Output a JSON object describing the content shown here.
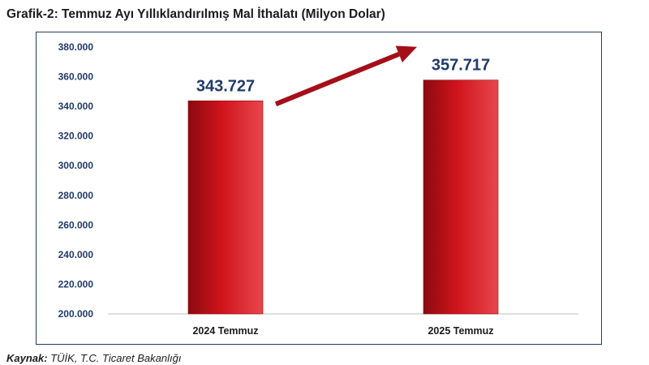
{
  "title": "Grafik-2: Temmuz Ayı Yıllıklandırılmış Mal İthalatı (Milyon Dolar)",
  "source": {
    "label": "Kaynak:",
    "text": " TÜİK, T.C. Ticaret Bakanlığı"
  },
  "colors": {
    "bar": "#d0141c",
    "bar_dark": "#8a0a0f",
    "bar_light": "#e8474d",
    "arrow": "#a50f18",
    "data_label": "#1f3a6b",
    "axis_text": "#1f3a6b",
    "frame": "#1f3a6b"
  },
  "chart_data": {
    "type": "bar",
    "title": "Grafik-2: Temmuz Ayı Yıllıklandırılmış Mal İthalatı (Milyon Dolar)",
    "categories": [
      "2024 Temmuz",
      "2025 Temmuz"
    ],
    "values": [
      343727,
      357717
    ],
    "value_labels": [
      "343.727",
      "357.717"
    ],
    "ylim": [
      200000,
      380000
    ],
    "ytick_values": [
      200000,
      220000,
      240000,
      260000,
      280000,
      300000,
      320000,
      340000,
      360000,
      380000
    ],
    "yticks": [
      "200.000",
      "220.000",
      "240.000",
      "260.000",
      "280.000",
      "300.000",
      "320.000",
      "340.000",
      "360.000",
      "380.000"
    ],
    "xlabel": "",
    "ylabel": "",
    "grid": false,
    "legend": "none",
    "annotations": [
      "arrow from 2024 Temmuz bar to 2025 Temmuz bar indicating increase"
    ]
  }
}
